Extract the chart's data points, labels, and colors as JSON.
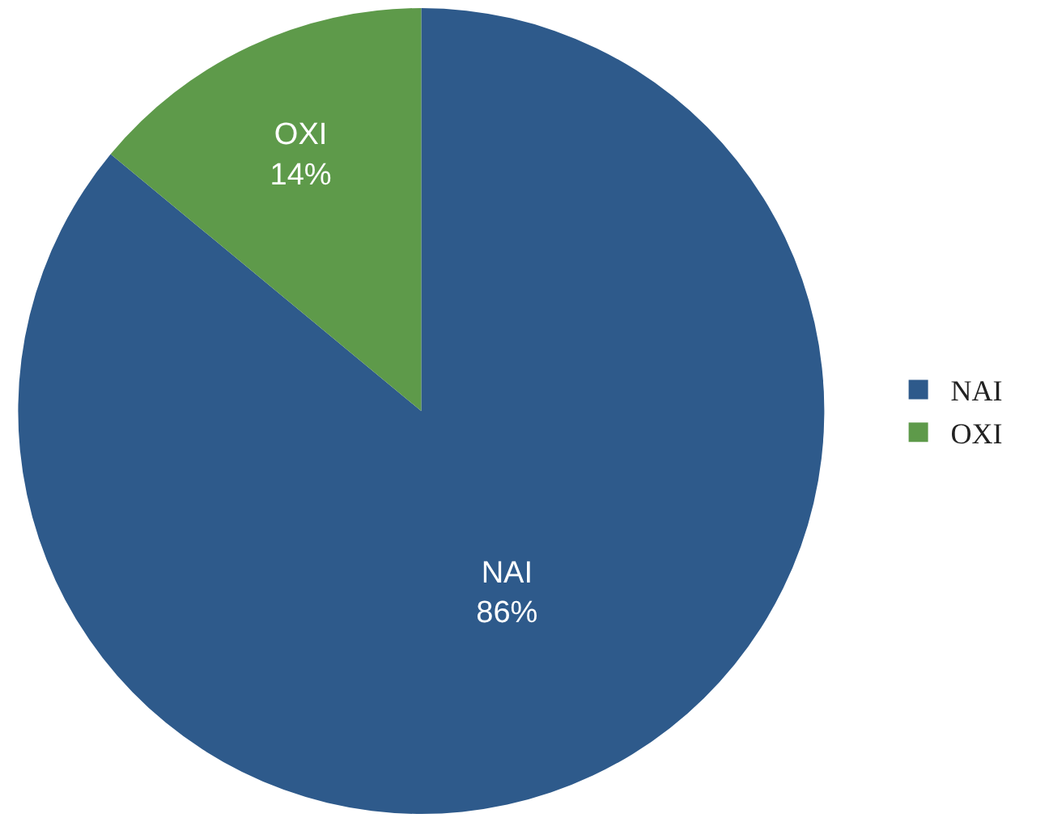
{
  "chart_data": {
    "type": "pie",
    "categories": [
      "NAI",
      "OXI"
    ],
    "values": [
      86,
      14
    ],
    "colors": [
      "#2e5a8b",
      "#5e9a4a"
    ],
    "value_labels": [
      "86%",
      "14%"
    ],
    "legend": "right"
  }
}
